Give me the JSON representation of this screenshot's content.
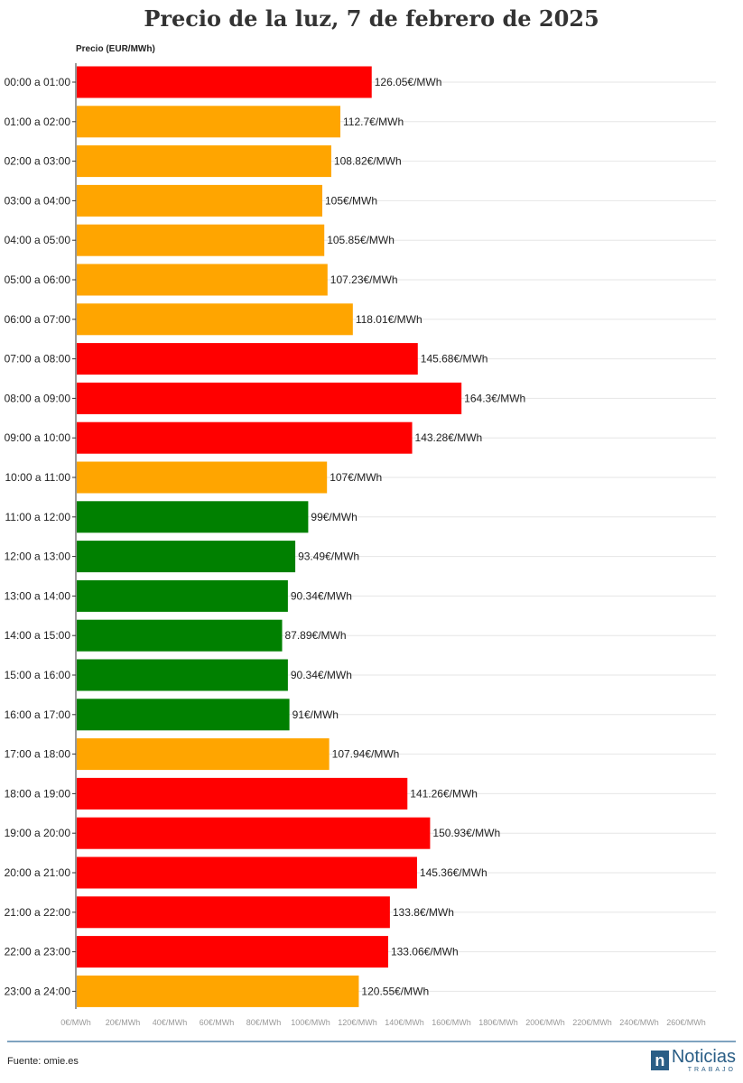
{
  "title": "Precio de la luz, 7 de febrero de 2025",
  "source": "Fuente: omie.es",
  "logo": {
    "mark": "n",
    "name": "Noticias",
    "sub": "TRABAJO"
  },
  "colors": {
    "high": "#ff0000",
    "mid": "#ffa500",
    "low": "#008000"
  },
  "chart_data": {
    "type": "bar",
    "orientation": "horizontal",
    "title": "Precio de la luz, 7 de febrero de 2025",
    "ylabel": "Precio (EUR/MWh)",
    "xlim": [
      0,
      260
    ],
    "x_ticks": [
      "0€/MWh",
      "20€/MWh",
      "40€/MWh",
      "60€/MWh",
      "80€/MWh",
      "100€/MWh",
      "120€/MWh",
      "140€/MWh",
      "160€/MWh",
      "180€/MWh",
      "200€/MWh",
      "220€/MWh",
      "240€/MWh",
      "260€/MWh"
    ],
    "x_tick_values": [
      0,
      20,
      40,
      60,
      80,
      100,
      120,
      140,
      160,
      180,
      200,
      220,
      240,
      260
    ],
    "grid": true,
    "categories": [
      "00:00 a 01:00",
      "01:00 a 02:00",
      "02:00 a 03:00",
      "03:00 a 04:00",
      "04:00 a 05:00",
      "05:00 a 06:00",
      "06:00 a 07:00",
      "07:00 a 08:00",
      "08:00 a 09:00",
      "09:00 a 10:00",
      "10:00 a 11:00",
      "11:00 a 12:00",
      "12:00 a 13:00",
      "13:00 a 14:00",
      "14:00 a 15:00",
      "15:00 a 16:00",
      "16:00 a 17:00",
      "17:00 a 18:00",
      "18:00 a 19:00",
      "19:00 a 20:00",
      "20:00 a 21:00",
      "21:00 a 22:00",
      "22:00 a 23:00",
      "23:00 a 24:00"
    ],
    "values": [
      126.05,
      112.7,
      108.82,
      105,
      105.85,
      107.23,
      118.01,
      145.68,
      164.3,
      143.28,
      107,
      99,
      93.49,
      90.34,
      87.89,
      90.34,
      91,
      107.94,
      141.26,
      150.93,
      145.36,
      133.8,
      133.06,
      120.55
    ],
    "value_labels": [
      "126.05€/MWh",
      "112.7€/MWh",
      "108.82€/MWh",
      "105€/MWh",
      "105.85€/MWh",
      "107.23€/MWh",
      "118.01€/MWh",
      "145.68€/MWh",
      "164.3€/MWh",
      "143.28€/MWh",
      "107€/MWh",
      "99€/MWh",
      "93.49€/MWh",
      "90.34€/MWh",
      "87.89€/MWh",
      "90.34€/MWh",
      "91€/MWh",
      "107.94€/MWh",
      "141.26€/MWh",
      "150.93€/MWh",
      "145.36€/MWh",
      "133.8€/MWh",
      "133.06€/MWh",
      "120.55€/MWh"
    ],
    "bar_colors": [
      "#ff0000",
      "#ffa500",
      "#ffa500",
      "#ffa500",
      "#ffa500",
      "#ffa500",
      "#ffa500",
      "#ff0000",
      "#ff0000",
      "#ff0000",
      "#ffa500",
      "#008000",
      "#008000",
      "#008000",
      "#008000",
      "#008000",
      "#008000",
      "#ffa500",
      "#ff0000",
      "#ff0000",
      "#ff0000",
      "#ff0000",
      "#ff0000",
      "#ffa500"
    ]
  }
}
